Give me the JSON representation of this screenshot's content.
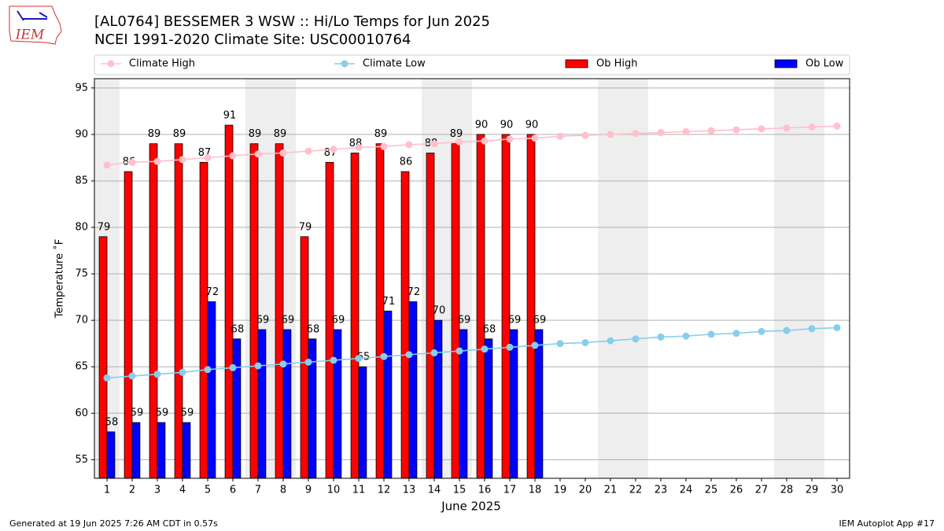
{
  "chart_data": {
    "type": "bar",
    "title": "[AL0764] BESSEMER 3 WSW :: Hi/Lo Temps for Jun 2025",
    "subtitle": "NCEI 1991-2020 Climate Site: USC00010764",
    "x_label": "June 2025",
    "y_label": "Temperature ˚F",
    "x": [
      1,
      2,
      3,
      4,
      5,
      6,
      7,
      8,
      9,
      10,
      11,
      12,
      13,
      14,
      15,
      16,
      17,
      18,
      19,
      20,
      21,
      22,
      23,
      24,
      25,
      26,
      27,
      28,
      29,
      30
    ],
    "xlim": [
      0.5,
      30.5
    ],
    "xticks": [
      1,
      2,
      3,
      4,
      5,
      6,
      7,
      8,
      9,
      10,
      11,
      12,
      13,
      14,
      15,
      16,
      17,
      18,
      19,
      20,
      21,
      22,
      23,
      24,
      25,
      26,
      27,
      28,
      29,
      30
    ],
    "ylim": [
      53,
      96
    ],
    "yticks": [
      55,
      60,
      65,
      70,
      75,
      80,
      85,
      90,
      95
    ],
    "grid": true,
    "weekend_days": [
      1,
      7,
      8,
      14,
      15,
      21,
      22,
      28,
      29
    ],
    "series": [
      {
        "name": "Climate High",
        "kind": "line",
        "color": "#ffc0cb",
        "values": [
          86.7,
          87.0,
          87.1,
          87.3,
          87.5,
          87.7,
          87.9,
          88.0,
          88.2,
          88.4,
          88.6,
          88.7,
          88.9,
          89.0,
          89.2,
          89.3,
          89.5,
          89.6,
          89.8,
          89.9,
          90.0,
          90.1,
          90.2,
          90.3,
          90.4,
          90.5,
          90.6,
          90.7,
          90.8,
          90.9
        ]
      },
      {
        "name": "Climate Low",
        "kind": "line",
        "color": "#87ceeb",
        "values": [
          63.8,
          64.0,
          64.2,
          64.4,
          64.7,
          64.9,
          65.1,
          65.3,
          65.5,
          65.7,
          65.9,
          66.1,
          66.3,
          66.5,
          66.7,
          66.9,
          67.1,
          67.3,
          67.5,
          67.6,
          67.8,
          68.0,
          68.2,
          68.3,
          68.5,
          68.6,
          68.8,
          68.9,
          69.1,
          69.2
        ]
      },
      {
        "name": "Ob High",
        "kind": "bar",
        "color": "#ff0000",
        "values": [
          79,
          86,
          89,
          89,
          87,
          91,
          89,
          89,
          79,
          87,
          88,
          89,
          86,
          88,
          89,
          90,
          90,
          90,
          null,
          null,
          null,
          null,
          null,
          null,
          null,
          null,
          null,
          null,
          null,
          null
        ]
      },
      {
        "name": "Ob Low",
        "kind": "bar",
        "color": "#0000ff",
        "values": [
          58,
          59,
          59,
          59,
          72,
          68,
          69,
          69,
          68,
          69,
          65,
          71,
          72,
          70,
          69,
          68,
          69,
          69,
          null,
          null,
          null,
          null,
          null,
          null,
          null,
          null,
          null,
          null,
          null,
          null
        ]
      }
    ]
  },
  "logo_text": "IEM",
  "footer_left": "Generated at 19 Jun 2025 7:26 AM CDT in 0.57s",
  "footer_right": "IEM Autoplot App #17"
}
